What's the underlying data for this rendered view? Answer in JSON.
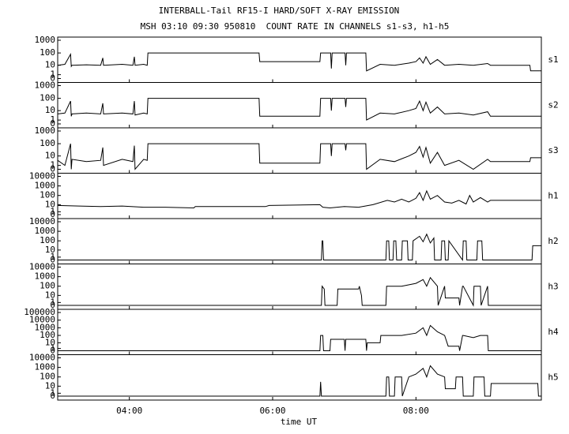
{
  "chart_data": {
    "type": "line",
    "title": "INTERBALL-Tail RF15-I HARD/SOFT X-RAY EMISSION",
    "subtitle": "MSH 03:10 09:30 950810  COUNT RATE IN CHANNELS s1-s3, h1-h5",
    "x_label": "time UT",
    "xlim": [
      3.0,
      9.75
    ],
    "xticks": [
      {
        "value": 4,
        "label": "04:00"
      },
      {
        "value": 6,
        "label": "06:00"
      },
      {
        "value": 8,
        "label": "08:00"
      }
    ],
    "yscale": "log",
    "color": "#000000",
    "panels": [
      {
        "name": "s1",
        "ylim": [
          0,
          1000
        ],
        "yticks": [
          0,
          1,
          10,
          100,
          1000
        ],
        "x": [
          3.0,
          3.1,
          3.18,
          3.19,
          3.2,
          3.4,
          3.6,
          3.63,
          3.64,
          3.9,
          4.05,
          4.07,
          4.08,
          4.2,
          4.25,
          4.26,
          5.81,
          5.82,
          6.66,
          6.67,
          6.81,
          6.82,
          6.83,
          7.01,
          7.02,
          7.03,
          7.3,
          7.31,
          7.5,
          7.7,
          7.9,
          8.0,
          8.05,
          8.1,
          8.14,
          8.2,
          8.3,
          8.4,
          8.6,
          8.8,
          9.0,
          9.04,
          9.59,
          9.6,
          9.75
        ],
        "values": [
          10,
          12,
          80,
          8,
          10,
          11,
          10,
          40,
          10,
          12,
          10,
          50,
          10,
          12,
          10,
          100,
          100,
          20,
          20,
          100,
          100,
          5,
          100,
          100,
          10,
          100,
          100,
          3,
          12,
          10,
          15,
          20,
          40,
          15,
          50,
          12,
          30,
          10,
          12,
          10,
          14,
          10,
          10,
          3,
          3
        ]
      },
      {
        "name": "s2",
        "ylim": [
          0,
          1000
        ],
        "yticks": [
          0,
          1,
          10,
          100,
          1000
        ],
        "x": [
          3.0,
          3.1,
          3.18,
          3.19,
          3.2,
          3.4,
          3.6,
          3.63,
          3.64,
          3.9,
          4.05,
          4.07,
          4.08,
          4.2,
          4.25,
          4.26,
          5.81,
          5.82,
          6.66,
          6.67,
          6.81,
          6.82,
          6.83,
          7.01,
          7.02,
          7.03,
          7.3,
          7.31,
          7.5,
          7.7,
          7.9,
          8.0,
          8.05,
          8.1,
          8.14,
          8.2,
          8.3,
          8.4,
          8.6,
          8.8,
          9.0,
          9.04,
          9.59,
          9.6,
          9.75
        ],
        "values": [
          5,
          6,
          60,
          3,
          5,
          6,
          5,
          40,
          5,
          6,
          5,
          60,
          4,
          6,
          5,
          100,
          100,
          3,
          3,
          100,
          100,
          10,
          100,
          100,
          20,
          100,
          100,
          1,
          6,
          5,
          10,
          15,
          60,
          10,
          50,
          6,
          20,
          5,
          6,
          4,
          8,
          3,
          3,
          3,
          3
        ]
      },
      {
        "name": "s3",
        "ylim": [
          0,
          1000
        ],
        "yticks": [
          0,
          1,
          10,
          100,
          1000
        ],
        "x": [
          3.0,
          3.1,
          3.18,
          3.19,
          3.2,
          3.4,
          3.6,
          3.63,
          3.64,
          3.9,
          4.05,
          4.07,
          4.08,
          4.2,
          4.25,
          4.26,
          5.81,
          5.82,
          6.66,
          6.67,
          6.81,
          6.82,
          6.83,
          7.01,
          7.02,
          7.03,
          7.3,
          7.31,
          7.5,
          7.7,
          7.9,
          8.0,
          8.05,
          8.1,
          8.14,
          8.2,
          8.3,
          8.4,
          8.6,
          8.8,
          9.0,
          9.04,
          9.59,
          9.6,
          9.75
        ],
        "values": [
          4,
          1,
          100,
          0,
          5,
          3,
          4,
          50,
          1,
          5,
          3,
          70,
          0,
          5,
          4,
          100,
          100,
          2,
          2,
          100,
          100,
          10,
          100,
          100,
          30,
          100,
          100,
          0,
          5,
          3,
          10,
          20,
          60,
          8,
          50,
          2,
          20,
          1,
          4,
          0,
          5,
          3,
          3,
          7,
          7
        ]
      },
      {
        "name": "h1",
        "ylim": [
          0,
          10000
        ],
        "yticks": [
          0,
          1,
          10,
          100,
          1000,
          10000
        ],
        "x": [
          3.0,
          3.3,
          3.6,
          3.9,
          4.2,
          4.5,
          4.9,
          4.92,
          5.9,
          5.95,
          6.66,
          6.7,
          6.8,
          7.0,
          7.2,
          7.4,
          7.6,
          7.7,
          7.8,
          7.9,
          8.0,
          8.05,
          8.1,
          8.15,
          8.2,
          8.3,
          8.4,
          8.5,
          8.6,
          8.7,
          8.75,
          8.8,
          8.9,
          9.0,
          9.04,
          9.75
        ],
        "values": [
          8,
          7,
          6,
          7,
          5,
          5,
          4,
          6,
          6,
          8,
          10,
          5,
          4,
          6,
          5,
          10,
          30,
          20,
          40,
          20,
          50,
          200,
          30,
          300,
          40,
          100,
          20,
          15,
          30,
          12,
          100,
          20,
          60,
          20,
          30,
          30
        ]
      },
      {
        "name": "h2",
        "ylim": [
          0,
          10000
        ],
        "yticks": [
          0,
          1,
          10,
          100,
          1000,
          10000
        ],
        "x": [
          3.0,
          6.68,
          6.69,
          6.7,
          6.71,
          7.58,
          7.59,
          7.62,
          7.63,
          7.68,
          7.69,
          7.72,
          7.73,
          7.8,
          7.81,
          7.88,
          7.89,
          7.95,
          7.96,
          8.05,
          8.1,
          8.15,
          8.2,
          8.25,
          8.26,
          8.35,
          8.36,
          8.4,
          8.41,
          8.45,
          8.46,
          8.65,
          8.66,
          8.7,
          8.71,
          8.85,
          8.86,
          8.92,
          8.93,
          9.0,
          9.01,
          9.62,
          9.63,
          9.75
        ],
        "values": [
          0,
          0,
          100,
          100,
          0,
          0,
          100,
          100,
          0,
          0,
          100,
          100,
          0,
          0,
          100,
          100,
          0,
          0,
          100,
          300,
          80,
          500,
          60,
          200,
          0,
          0,
          100,
          100,
          0,
          0,
          100,
          0,
          100,
          100,
          0,
          0,
          100,
          100,
          0,
          0,
          0,
          0,
          30,
          30
        ]
      },
      {
        "name": "h3",
        "ylim": [
          0,
          10000
        ],
        "yticks": [
          0,
          1,
          10,
          100,
          1000,
          10000
        ],
        "x": [
          3.0,
          6.68,
          6.69,
          6.72,
          6.73,
          6.9,
          6.91,
          7.2,
          7.21,
          7.24,
          7.25,
          7.58,
          7.59,
          7.8,
          8.0,
          8.1,
          8.15,
          8.2,
          8.3,
          8.31,
          8.4,
          8.41,
          8.6,
          8.61,
          8.65,
          8.66,
          8.8,
          8.81,
          8.9,
          8.91,
          9.0,
          9.01,
          9.75
        ],
        "values": [
          0,
          0,
          100,
          50,
          0,
          0,
          50,
          50,
          100,
          10,
          0,
          0,
          100,
          100,
          200,
          500,
          100,
          800,
          100,
          0,
          100,
          5,
          5,
          0,
          100,
          100,
          0,
          100,
          100,
          0,
          100,
          0,
          0
        ]
      },
      {
        "name": "h4",
        "ylim": [
          0,
          100000
        ],
        "yticks": [
          0,
          1,
          10,
          100,
          1000,
          10000,
          100000
        ],
        "x": [
          3.0,
          6.66,
          6.67,
          6.7,
          6.71,
          6.8,
          6.81,
          7.0,
          7.01,
          7.02,
          7.3,
          7.31,
          7.32,
          7.5,
          7.51,
          7.8,
          8.0,
          8.1,
          8.15,
          8.2,
          8.3,
          8.4,
          8.45,
          8.6,
          8.61,
          8.65,
          8.66,
          8.8,
          8.9,
          9.0,
          9.01,
          9.75
        ],
        "values": [
          0,
          0,
          100,
          100,
          0,
          0,
          30,
          30,
          0,
          30,
          30,
          0,
          10,
          10,
          100,
          100,
          200,
          1000,
          100,
          2000,
          300,
          100,
          3,
          3,
          0,
          100,
          100,
          50,
          100,
          100,
          0,
          0
        ]
      },
      {
        "name": "h5",
        "ylim": [
          0,
          10000
        ],
        "yticks": [
          0,
          1,
          10,
          100,
          1000,
          10000
        ],
        "x": [
          3.0,
          6.66,
          6.67,
          6.68,
          7.58,
          7.59,
          7.62,
          7.63,
          7.7,
          7.71,
          7.8,
          7.81,
          7.9,
          8.0,
          8.1,
          8.15,
          8.2,
          8.3,
          8.4,
          8.41,
          8.55,
          8.56,
          8.65,
          8.66,
          8.8,
          8.81,
          8.95,
          8.96,
          9.04,
          9.05,
          9.7,
          9.71,
          9.75
        ],
        "values": [
          0,
          0,
          30,
          0,
          0,
          100,
          100,
          0,
          0,
          100,
          100,
          0,
          100,
          200,
          800,
          100,
          1500,
          200,
          100,
          5,
          5,
          100,
          100,
          0,
          0,
          100,
          100,
          0,
          0,
          20,
          20,
          0,
          0
        ]
      }
    ]
  }
}
